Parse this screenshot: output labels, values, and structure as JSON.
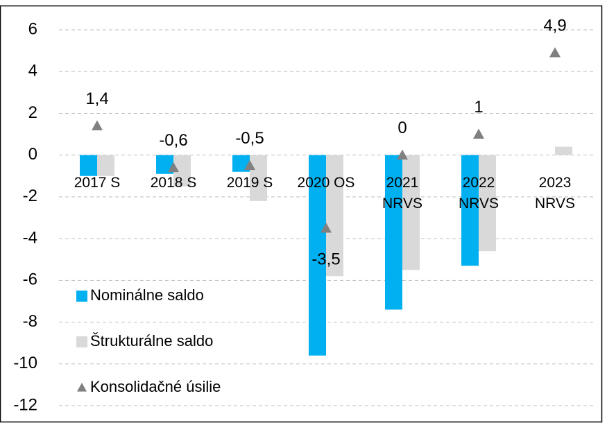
{
  "chart_data": {
    "type": "bar",
    "categories": [
      "2017 S",
      "2018 S",
      "2019 S",
      "2020 OS",
      "2021\nNRVS",
      "2022\nNRVS",
      "2023\nNRVS"
    ],
    "series": [
      {
        "name": "Nominálne saldo",
        "color": "#00b0f0",
        "type": "bar",
        "values": [
          -1.0,
          -0.9,
          -0.8,
          -9.6,
          -7.4,
          -5.3,
          null
        ]
      },
      {
        "name": "Štrukturálne saldo",
        "color": "#d9d9d9",
        "type": "bar",
        "values": [
          -1.0,
          -1.5,
          -2.2,
          -5.8,
          -5.5,
          -4.6,
          0.4
        ]
      },
      {
        "name": "Konsolidačné úsilie",
        "color": "#808080",
        "type": "marker",
        "values": [
          1.4,
          -0.6,
          -0.5,
          -3.5,
          0,
          1,
          4.9
        ],
        "value_labels": [
          "1,4",
          "-0,6",
          "-0,5",
          "-3,5",
          "0",
          "1",
          "4,9"
        ]
      }
    ],
    "ylim": [
      -12,
      6
    ],
    "yticks": [
      -12,
      -10,
      -8,
      -6,
      -4,
      -2,
      0,
      2,
      4,
      6
    ],
    "grid": true,
    "legend": "lower left"
  }
}
